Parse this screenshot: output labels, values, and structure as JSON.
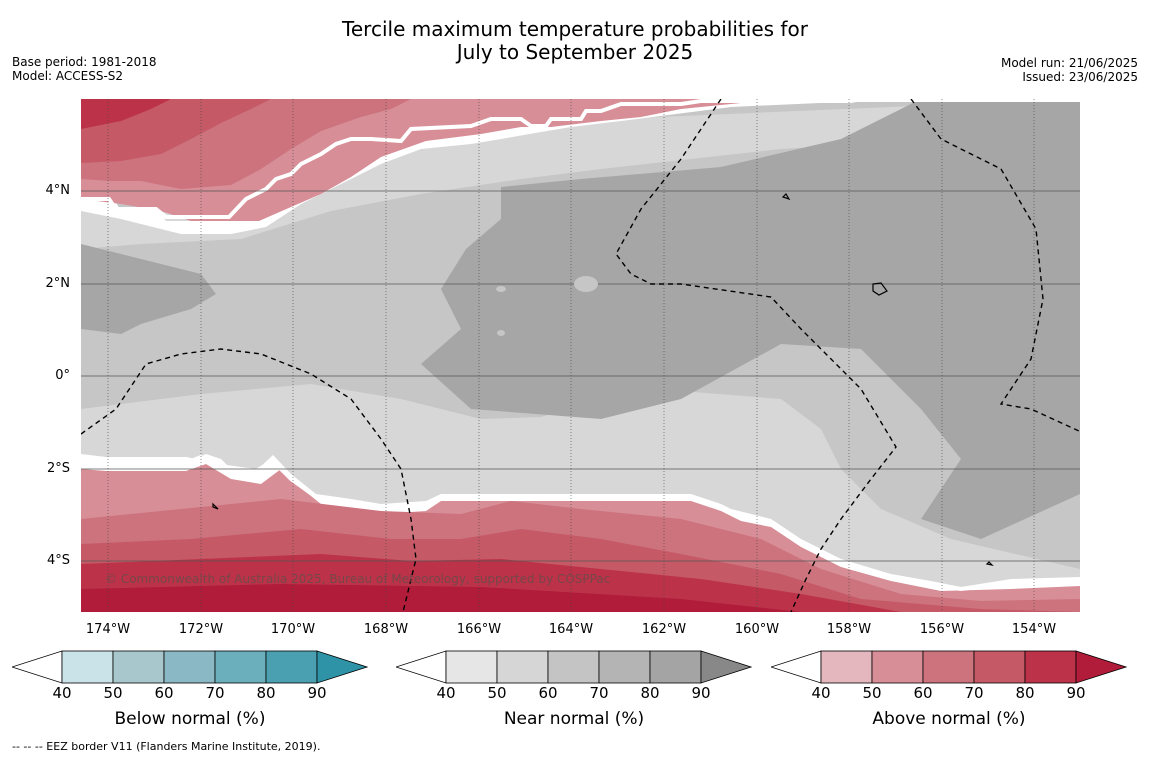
{
  "title": {
    "line1": "Tercile maximum temperature probabilities for",
    "line2": "July to September 2025"
  },
  "meta": {
    "base_period": "Base period: 1981-2018",
    "model": "Model: ACCESS-S2",
    "model_run": "Model run: 21/06/2025",
    "issued": "Issued: 23/06/2025"
  },
  "map": {
    "lat_labels": [
      "4°N",
      "2°N",
      "0°",
      "2°S",
      "4°S"
    ],
    "lon_labels": [
      "174°W",
      "172°W",
      "170°W",
      "168°W",
      "166°W",
      "164°W",
      "162°W",
      "160°W",
      "158°W",
      "156°W",
      "154°W"
    ],
    "copyright": "© Commonwealth of Australia 2025, Bureau of Meteorology, supported by COSPPac"
  },
  "colorbars": [
    {
      "label": "Below normal (%)",
      "ticks": [
        "40",
        "50",
        "60",
        "70",
        "80",
        "90"
      ],
      "colors": [
        "#cae3e9",
        "#a8c7cc",
        "#8bb8c5",
        "#6cafbc",
        "#4aa0b0",
        "#2f93a7"
      ]
    },
    {
      "label": "Near normal (%)",
      "ticks": [
        "40",
        "50",
        "60",
        "70",
        "80",
        "90"
      ],
      "colors": [
        "#e6e6e6",
        "#d6d6d6",
        "#c4c4c4",
        "#b4b4b4",
        "#a4a4a4",
        "#888888"
      ]
    },
    {
      "label": "Above normal (%)",
      "ticks": [
        "40",
        "50",
        "60",
        "70",
        "80",
        "90"
      ],
      "colors": [
        "#e3b7bd",
        "#d78e97",
        "#cc737e",
        "#c55a66",
        "#bc3349",
        "#b01c3a"
      ]
    }
  ],
  "footnote": "-- -- -- EEZ border V11 (Flanders Marine Institute, 2019)."
}
